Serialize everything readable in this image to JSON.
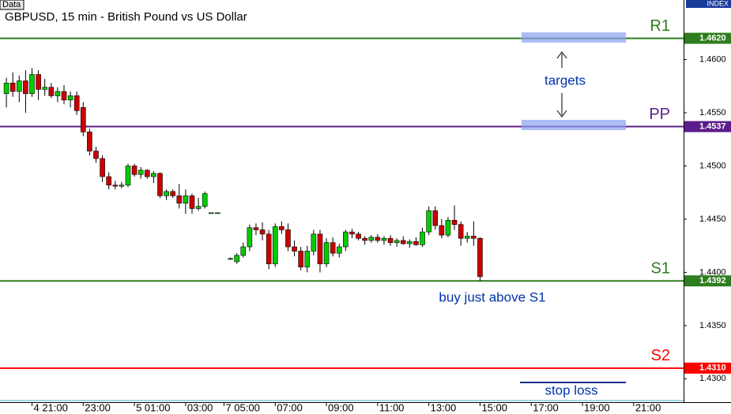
{
  "chart_data": {
    "type": "candlestick",
    "title": "GBPUSD, 15 min - British Pound vs US Dollar",
    "panel_label": "Data",
    "axis_label": "INDEX",
    "up_color": "#00cc00",
    "down_color": "#cc0000",
    "xlim": [
      -1,
      105.8
    ],
    "ylim": [
      1.4278,
      1.4656
    ],
    "yticks": [
      {
        "value": 1.43,
        "label": "1.4300"
      },
      {
        "value": 1.435,
        "label": "1.4350"
      },
      {
        "value": 1.44,
        "label": "1.4400"
      },
      {
        "value": 1.445,
        "label": "1.4450"
      },
      {
        "value": 1.45,
        "label": "1.4500"
      },
      {
        "value": 1.455,
        "label": "1.4550"
      },
      {
        "value": 1.46,
        "label": "1.4600"
      }
    ],
    "xticks": [
      {
        "value": 4,
        "label": "4 21:00"
      },
      {
        "value": 12,
        "label": "23:00"
      },
      {
        "value": 20,
        "label": "5 01:00"
      },
      {
        "value": 28,
        "label": "03:00"
      },
      {
        "value": 34,
        "label": "7 05:00"
      },
      {
        "value": 42,
        "label": "07:00"
      },
      {
        "value": 50,
        "label": "09:00"
      },
      {
        "value": 58,
        "label": "11:00"
      },
      {
        "value": 66,
        "label": "13:00"
      },
      {
        "value": 74,
        "label": "15:00"
      },
      {
        "value": 82,
        "label": "17:00"
      },
      {
        "value": 90,
        "label": "19:00"
      },
      {
        "value": 98,
        "label": "21:00"
      }
    ],
    "x": [
      0,
      1,
      2,
      3,
      4,
      5,
      6,
      7,
      8,
      9,
      10,
      11,
      12,
      13,
      14,
      15,
      16,
      17,
      18,
      19,
      20,
      21,
      22,
      23,
      24,
      25,
      26,
      27,
      28,
      29,
      30,
      31,
      32,
      33,
      35,
      36,
      37,
      38,
      39,
      40,
      41,
      42,
      43,
      44,
      45,
      46,
      47,
      48,
      49,
      50,
      51,
      52,
      53,
      54,
      55,
      56,
      57,
      58,
      59,
      60,
      61,
      62,
      63,
      64,
      65,
      66,
      67,
      68,
      69,
      70,
      71,
      72,
      73,
      74
    ],
    "open": [
      1.4568,
      1.4578,
      1.457,
      1.458,
      1.4568,
      1.4586,
      1.4572,
      1.4574,
      1.4566,
      1.457,
      1.4562,
      1.4566,
      1.4555,
      1.4532,
      1.4514,
      1.4507,
      1.449,
      1.4482,
      1.4481,
      1.4482,
      1.45,
      1.4492,
      1.4496,
      1.449,
      1.4493,
      1.4472,
      1.4476,
      1.4472,
      1.4465,
      1.4472,
      1.446,
      1.4462,
      1.4456,
      1.4456,
      1.4413,
      1.441,
      1.4416,
      1.4424,
      1.4442,
      1.444,
      1.4436,
      1.4408,
      1.4443,
      1.444,
      1.4424,
      1.442,
      1.4405,
      1.442,
      1.4436,
      1.4408,
      1.4428,
      1.4418,
      1.4424,
      1.4438,
      1.4436,
      1.4432,
      1.443,
      1.4433,
      1.443,
      1.4432,
      1.4428,
      1.443,
      1.4427,
      1.4429,
      1.4426,
      1.4438,
      1.4458,
      1.4444,
      1.4435,
      1.4449,
      1.4445,
      1.4432,
      1.4434,
      1.4432
    ],
    "high": [
      1.4583,
      1.4588,
      1.4585,
      1.459,
      1.4592,
      1.459,
      1.4582,
      1.4578,
      1.4574,
      1.4576,
      1.457,
      1.457,
      1.456,
      1.4535,
      1.4518,
      1.451,
      1.4494,
      1.4486,
      1.4485,
      1.4502,
      1.4502,
      1.4499,
      1.4497,
      1.4495,
      1.4494,
      1.4478,
      1.4478,
      1.4483,
      1.4478,
      1.4474,
      1.447,
      1.4476,
      1.4456,
      1.4456,
      1.4414,
      1.4418,
      1.4428,
      1.4445,
      1.4446,
      1.4447,
      1.444,
      1.4446,
      1.4448,
      1.4446,
      1.443,
      1.4424,
      1.4425,
      1.444,
      1.444,
      1.4432,
      1.4433,
      1.4427,
      1.444,
      1.4441,
      1.4438,
      1.4434,
      1.4435,
      1.4436,
      1.4434,
      1.4435,
      1.4432,
      1.4434,
      1.4431,
      1.4433,
      1.4442,
      1.4462,
      1.4462,
      1.445,
      1.4452,
      1.4463,
      1.4448,
      1.4438,
      1.4448,
      1.4433
    ],
    "low": [
      1.4555,
      1.4565,
      1.456,
      1.455,
      1.4565,
      1.4562,
      1.4566,
      1.4564,
      1.456,
      1.4558,
      1.4555,
      1.4548,
      1.4528,
      1.451,
      1.4503,
      1.4485,
      1.4478,
      1.4478,
      1.4479,
      1.448,
      1.449,
      1.4488,
      1.4488,
      1.4484,
      1.447,
      1.4468,
      1.447,
      1.446,
      1.4455,
      1.4455,
      1.4458,
      1.446,
      1.4456,
      1.4456,
      1.4412,
      1.4408,
      1.4414,
      1.442,
      1.4435,
      1.443,
      1.4403,
      1.4405,
      1.4436,
      1.442,
      1.4415,
      1.4402,
      1.44,
      1.4416,
      1.44,
      1.4405,
      1.4415,
      1.4414,
      1.442,
      1.4432,
      1.443,
      1.4426,
      1.4428,
      1.4428,
      1.4426,
      1.4425,
      1.4424,
      1.4426,
      1.4423,
      1.4425,
      1.4424,
      1.4435,
      1.444,
      1.4432,
      1.4433,
      1.444,
      1.4425,
      1.4428,
      1.4425,
      1.4392
    ],
    "close": [
      1.4578,
      1.457,
      1.458,
      1.4568,
      1.4586,
      1.4572,
      1.4574,
      1.4566,
      1.457,
      1.4562,
      1.4566,
      1.4552,
      1.4532,
      1.4514,
      1.4507,
      1.449,
      1.4482,
      1.4481,
      1.4482,
      1.45,
      1.4492,
      1.4496,
      1.449,
      1.4493,
      1.4472,
      1.4476,
      1.4472,
      1.4465,
      1.4472,
      1.446,
      1.4462,
      1.4474,
      1.4456,
      1.4456,
      1.4413,
      1.4416,
      1.4424,
      1.4442,
      1.444,
      1.4436,
      1.4408,
      1.4443,
      1.444,
      1.4424,
      1.442,
      1.4405,
      1.442,
      1.4436,
      1.4408,
      1.4428,
      1.4418,
      1.4424,
      1.4438,
      1.4436,
      1.4432,
      1.443,
      1.4433,
      1.443,
      1.4432,
      1.4428,
      1.443,
      1.4427,
      1.4429,
      1.4426,
      1.4438,
      1.4458,
      1.4444,
      1.4435,
      1.4449,
      1.4445,
      1.4432,
      1.4434,
      1.4432,
      1.4396
    ],
    "levels": [
      {
        "name": "R1",
        "value": 1.462,
        "label": "1.4620",
        "color": "#2e7d1e"
      },
      {
        "name": "PP",
        "value": 1.4537,
        "label": "1.4537",
        "color": "#5b1d8a"
      },
      {
        "name": "S1",
        "value": 1.4392,
        "label": "1.4392",
        "color": "#2e7d1e"
      },
      {
        "name": "S2",
        "value": 1.431,
        "label": "1.4310",
        "color": "#ff0000"
      }
    ],
    "annotations": [
      "targets",
      "buy just above S1",
      "stop loss"
    ]
  }
}
